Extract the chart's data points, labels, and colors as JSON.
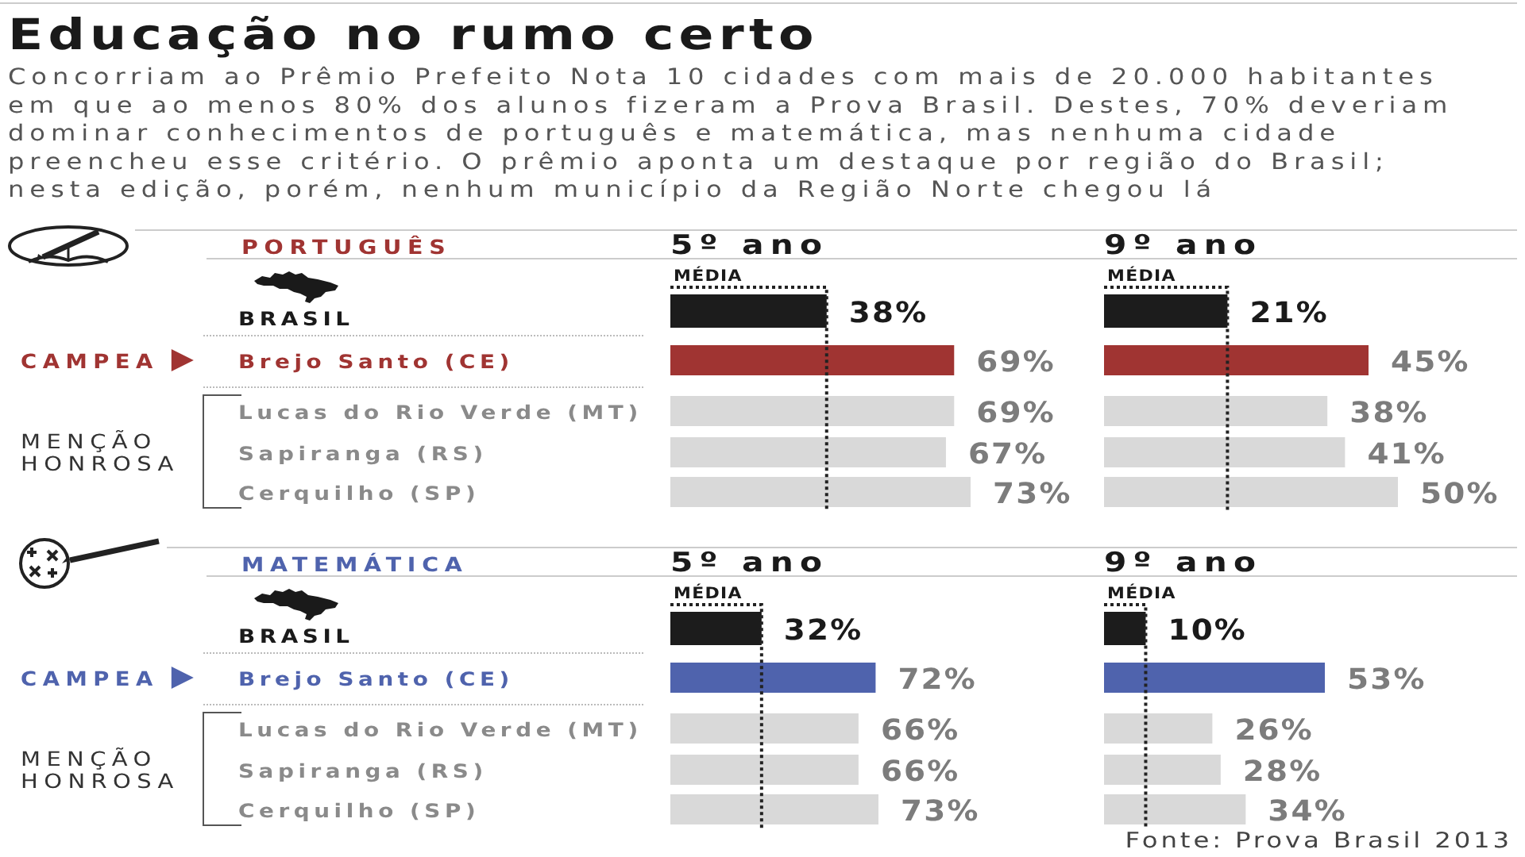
{
  "chart_data": [
    {
      "type": "other",
      "title": "Educação no rumo certo",
      "subtitle": "Concorriam ao Prêmio Prefeito Nota 10 cidades com mais de 20.000 habitantes em que ao menos 80% dos alunos fizeram a Prova Brasil. Destes, 70% deveriam dominar conhecimentos de português e matemática, mas nenhuma cidade preencheu esse critério. O prêmio aponta um destaque por região do Brasil; nesta edição, porém, nenhum município da Região Norte chegou lá",
      "annotations": [
        "Fonte: Prova Brasil 2013"
      ]
    },
    {
      "type": "bar",
      "orientation": "horizontal",
      "title": "5º ano",
      "categories": [
        "BRASIL",
        "Brejo Santo (CE)",
        "Lucas do Rio Verde (MT)",
        "Sapiranga (RS)",
        "Cerquilho (SP)"
      ],
      "values": [
        38,
        69,
        69,
        67,
        73
      ],
      "value_labels": [
        "38%",
        "69%",
        "69%",
        "67%",
        "73%"
      ],
      "colors": [
        "#1c1c1c",
        "#a03432",
        "#d9d9d9",
        "#d9d9d9",
        "#d9d9d9"
      ],
      "ref_lines": [
        {
          "axis": "x",
          "value": 38,
          "label": "MÉDIA",
          "line_style": "dotted"
        }
      ],
      "annotations": [
        "PORTUGUÊS",
        "CAMPEA",
        "MENÇÃO HONROSA"
      ],
      "tick_labels": "y"
    },
    {
      "type": "bar",
      "orientation": "horizontal",
      "title": "9º ano",
      "categories": [
        "BRASIL",
        "Brejo Santo (CE)",
        "Lucas do Rio Verde (MT)",
        "Sapiranga (RS)",
        "Cerquilho (SP)"
      ],
      "values": [
        21,
        45,
        38,
        41,
        50
      ],
      "value_labels": [
        "21%",
        "45%",
        "38%",
        "41%",
        "50%"
      ],
      "colors": [
        "#1c1c1c",
        "#a03432",
        "#d9d9d9",
        "#d9d9d9",
        "#d9d9d9"
      ],
      "ref_lines": [
        {
          "axis": "x",
          "value": 21,
          "label": "MÉDIA",
          "line_style": "dotted"
        }
      ],
      "tick_labels": false
    },
    {
      "type": "bar",
      "orientation": "horizontal",
      "title": "5º ano",
      "categories": [
        "BRASIL",
        "Brejo Santo (CE)",
        "Lucas do Rio Verde (MT)",
        "Sapiranga (RS)",
        "Cerquilho (SP)"
      ],
      "values": [
        32,
        72,
        66,
        66,
        73
      ],
      "value_labels": [
        "32%",
        "72%",
        "66%",
        "66%",
        "73%"
      ],
      "colors": [
        "#1c1c1c",
        "#4f63ad",
        "#d9d9d9",
        "#d9d9d9",
        "#d9d9d9"
      ],
      "ref_lines": [
        {
          "axis": "x",
          "value": 32,
          "label": "MÉDIA",
          "line_style": "dotted"
        }
      ],
      "annotations": [
        "MATEMÁTICA",
        "CAMPEA",
        "MENÇÃO HONROSA"
      ],
      "tick_labels": "y"
    },
    {
      "type": "bar",
      "orientation": "horizontal",
      "title": "9º ano",
      "categories": [
        "BRASIL",
        "Brejo Santo (CE)",
        "Lucas do Rio Verde (MT)",
        "Sapiranga (RS)",
        "Cerquilho (SP)"
      ],
      "values": [
        10,
        53,
        26,
        28,
        34
      ],
      "value_labels": [
        "10%",
        "53%",
        "26%",
        "28%",
        "34%"
      ],
      "colors": [
        "#1c1c1c",
        "#4f63ad",
        "#d9d9d9",
        "#d9d9d9",
        "#d9d9d9"
      ],
      "ref_lines": [
        {
          "axis": "x",
          "value": 10,
          "label": "MÉDIA",
          "line_style": "dotted"
        }
      ],
      "tick_labels": false
    }
  ]
}
